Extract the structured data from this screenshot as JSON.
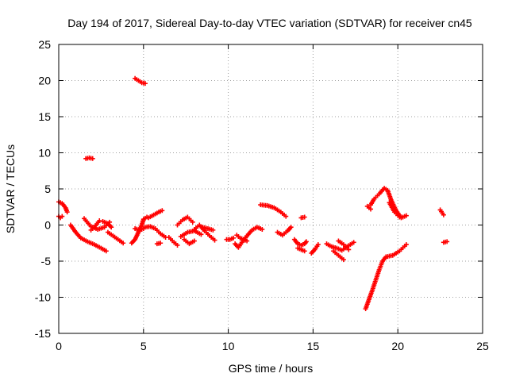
{
  "chart_data": {
    "type": "scatter",
    "title": "Day 194 of 2017, Sidereal Day-to-day VTEC variation (SDTVAR) for receiver cn45",
    "xlabel": "GPS time / hours",
    "ylabel": "SDTVAR / TECUs",
    "xlim": [
      0,
      25
    ],
    "ylim": [
      -15,
      25
    ],
    "xticks": [
      0,
      5,
      10,
      15,
      20,
      25
    ],
    "yticks": [
      -15,
      -10,
      -5,
      0,
      5,
      10,
      15,
      20,
      25
    ],
    "xtick_labels": [
      "0",
      "5",
      "10",
      "15",
      "20",
      "25"
    ],
    "ytick_labels": [
      "-15",
      "-10",
      "-5",
      "0",
      "5",
      "10",
      "15",
      "20",
      "25"
    ],
    "grid": true,
    "marker": "+",
    "marker_color": "#ff0000",
    "series": [
      {
        "name": "SDTVAR",
        "segments": [
          {
            "x": [
              0.0,
              0.2,
              0.4,
              0.5
            ],
            "y": [
              3.2,
              3.0,
              2.4,
              1.8
            ]
          },
          {
            "x": [
              0.0,
              0.1,
              0.2
            ],
            "y": [
              1.2,
              1.0,
              1.2
            ]
          },
          {
            "x": [
              0.7,
              1.0,
              1.3,
              1.7,
              2.1,
              2.5,
              2.8
            ],
            "y": [
              0.0,
              -1.0,
              -1.8,
              -2.3,
              -2.7,
              -3.2,
              -3.6
            ]
          },
          {
            "x": [
              1.5,
              1.9,
              2.3,
              2.7,
              3.0
            ],
            "y": [
              0.9,
              -0.2,
              -0.6,
              -0.3,
              0.4
            ]
          },
          {
            "x": [
              1.9,
              2.1,
              2.4
            ],
            "y": [
              -0.7,
              -0.3,
              0.6
            ]
          },
          {
            "x": [
              1.6,
              1.8,
              2.0
            ],
            "y": [
              9.2,
              9.3,
              9.2
            ]
          },
          {
            "x": [
              2.9,
              3.2,
              3.5,
              3.8
            ],
            "y": [
              -1.0,
              -1.5,
              -2.0,
              -2.5
            ]
          },
          {
            "x": [
              2.6,
              2.9,
              3.1
            ],
            "y": [
              0.5,
              0.2,
              -0.3
            ]
          },
          {
            "x": [
              4.5,
              4.7,
              4.9,
              5.1
            ],
            "y": [
              20.3,
              20.0,
              19.7,
              19.6
            ]
          },
          {
            "x": [
              4.3,
              4.5,
              4.7,
              4.9,
              5.0,
              5.2
            ],
            "y": [
              -2.5,
              -2.0,
              -1.0,
              0.0,
              0.8,
              1.1
            ]
          },
          {
            "x": [
              4.5,
              4.8,
              5.0
            ],
            "y": [
              -0.5,
              -0.7,
              -0.5
            ]
          },
          {
            "x": [
              5.3,
              5.6,
              5.9,
              6.1
            ],
            "y": [
              1.0,
              1.4,
              1.8,
              2.0
            ]
          },
          {
            "x": [
              5.1,
              5.4,
              5.7,
              6.0,
              6.3
            ],
            "y": [
              -0.3,
              -0.2,
              -0.5,
              -1.2,
              -1.7
            ]
          },
          {
            "x": [
              5.8,
              6.0
            ],
            "y": [
              -2.6,
              -2.5
            ]
          },
          {
            "x": [
              6.5,
              6.8,
              7.0
            ],
            "y": [
              -1.7,
              -2.4,
              -2.8
            ]
          },
          {
            "x": [
              7.0,
              7.3,
              7.6,
              7.9
            ],
            "y": [
              0.0,
              0.7,
              1.1,
              0.4
            ]
          },
          {
            "x": [
              7.2,
              7.6,
              8.0,
              8.4
            ],
            "y": [
              -1.6,
              -1.0,
              -0.8,
              -1.3
            ]
          },
          {
            "x": [
              7.4,
              7.7,
              8.0
            ],
            "y": [
              -2.0,
              -2.6,
              -2.2
            ]
          },
          {
            "x": [
              8.0,
              8.3,
              8.6,
              8.9,
              9.2
            ],
            "y": [
              -0.6,
              0.0,
              -0.8,
              -1.5,
              -2.1
            ]
          },
          {
            "x": [
              8.5,
              8.8,
              9.1
            ],
            "y": [
              -0.3,
              -0.5,
              -0.7
            ]
          },
          {
            "x": [
              9.9,
              10.1,
              10.3
            ],
            "y": [
              -2.0,
              -2.0,
              -1.8
            ]
          },
          {
            "x": [
              10.4,
              10.6,
              10.8,
              11.1,
              11.4,
              11.7,
              12.0
            ],
            "y": [
              -2.6,
              -3.1,
              -2.4,
              -1.5,
              -0.7,
              -0.3,
              -0.6
            ]
          },
          {
            "x": [
              10.5,
              10.7,
              10.9,
              11.1
            ],
            "y": [
              -1.4,
              -1.8,
              -2.0,
              -2.2
            ]
          },
          {
            "x": [
              11.9,
              12.3,
              12.7,
              13.1,
              13.4
            ],
            "y": [
              2.8,
              2.7,
              2.4,
              1.8,
              1.2
            ]
          },
          {
            "x": [
              12.9,
              13.2,
              13.5,
              13.7
            ],
            "y": [
              -1.0,
              -1.4,
              -0.8,
              -0.3
            ]
          },
          {
            "x": [
              14.3,
              14.5
            ],
            "y": [
              1.0,
              1.1
            ]
          },
          {
            "x": [
              13.9,
              14.1,
              14.3,
              14.5,
              14.6
            ],
            "y": [
              -2.0,
              -2.6,
              -2.8,
              -2.6,
              -2.3
            ]
          },
          {
            "x": [
              14.1,
              14.3,
              14.5
            ],
            "y": [
              -3.2,
              -3.4,
              -3.6
            ]
          },
          {
            "x": [
              14.9,
              15.1,
              15.3
            ],
            "y": [
              -3.9,
              -3.4,
              -2.7
            ]
          },
          {
            "x": [
              15.8,
              16.1,
              16.4,
              16.7,
              17.0,
              17.4
            ],
            "y": [
              -2.6,
              -3.0,
              -3.2,
              -3.5,
              -3.0,
              -2.4
            ]
          },
          {
            "x": [
              16.2,
              16.5,
              16.8
            ],
            "y": [
              -3.6,
              -4.2,
              -4.8
            ]
          },
          {
            "x": [
              16.5,
              16.8,
              17.1
            ],
            "y": [
              -2.2,
              -2.7,
              -3.4
            ]
          },
          {
            "x": [
              18.1,
              18.3,
              18.5,
              18.7,
              18.9,
              19.1,
              19.3,
              19.7,
              20.1,
              20.5
            ],
            "y": [
              -11.6,
              -10.3,
              -9.0,
              -7.6,
              -6.2,
              -5.0,
              -4.4,
              -4.2,
              -3.6,
              -2.7
            ]
          },
          {
            "x": [
              18.2,
              18.4
            ],
            "y": [
              2.6,
              2.2
            ]
          },
          {
            "x": [
              18.4,
              18.6,
              18.9,
              19.2,
              19.4,
              19.6,
              19.9,
              20.2,
              20.5
            ],
            "y": [
              2.8,
              3.6,
              4.3,
              5.1,
              4.8,
              3.5,
              2.0,
              1.0,
              1.3
            ]
          },
          {
            "x": [
              19.5,
              19.8,
              20.1
            ],
            "y": [
              3.1,
              1.8,
              1.1
            ]
          },
          {
            "x": [
              22.5,
              22.7
            ],
            "y": [
              2.1,
              1.4
            ]
          },
          {
            "x": [
              22.7,
              22.9
            ],
            "y": [
              -2.4,
              -2.3
            ]
          }
        ]
      }
    ]
  }
}
